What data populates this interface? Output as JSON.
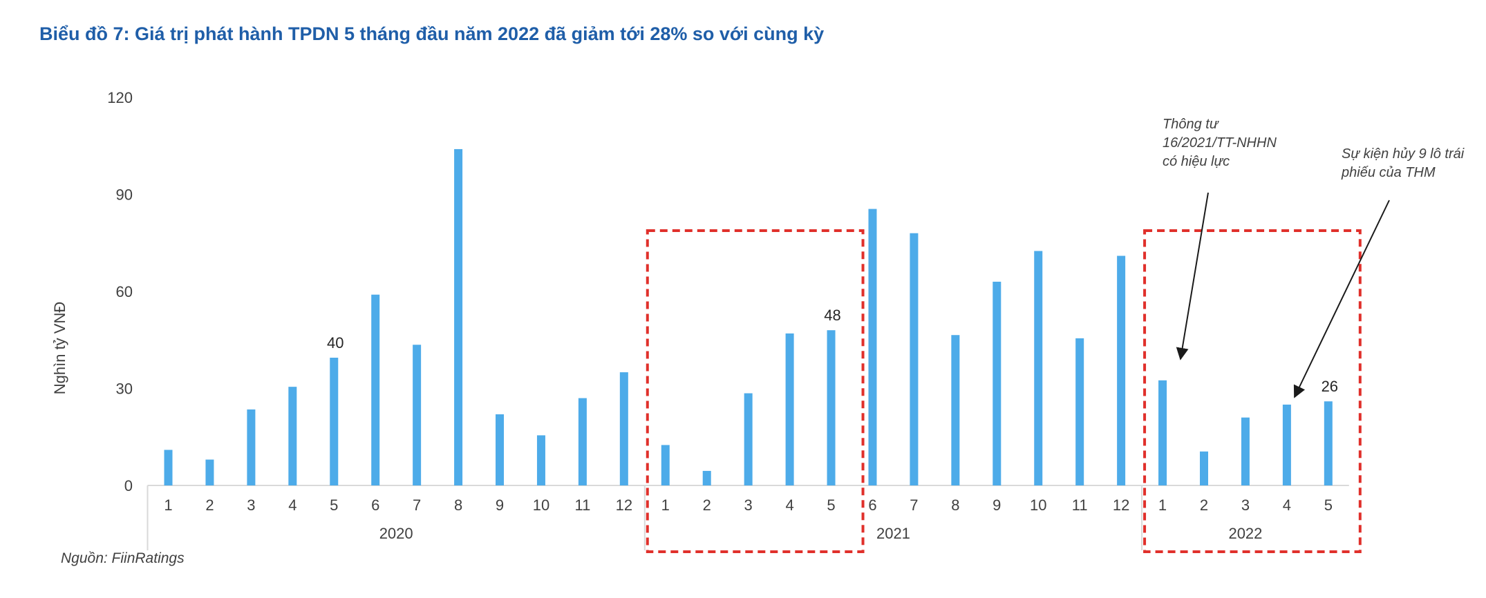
{
  "title": "Biểu đồ 7: Giá trị phát hành TPDN 5 tháng đầu năm 2022 đã giảm tới 28% so với cùng kỳ",
  "source": "Nguồn: FiinRatings",
  "colors": {
    "bar": "#4dabe9",
    "highlight_box": "#e0302b",
    "title": "#1f5ea8"
  },
  "chart_data": {
    "type": "bar",
    "title": "Biểu đồ 7: Giá trị phát hành TPDN 5 tháng đầu năm 2022 đã giảm tới 28% so với cùng kỳ",
    "ylabel": "Nghìn tỷ VNĐ",
    "xlabel": "",
    "ylim": [
      0,
      120
    ],
    "yticks": [
      "0",
      "30",
      "60",
      "90",
      "120"
    ],
    "grid": false,
    "groups": [
      {
        "label": "2020",
        "months": [
          "1",
          "2",
          "3",
          "4",
          "5",
          "6",
          "7",
          "8",
          "9",
          "10",
          "11",
          "12"
        ],
        "values": [
          11,
          8,
          23.5,
          30.5,
          39.5,
          59,
          43.5,
          104,
          22,
          15.5,
          27,
          35
        ]
      },
      {
        "label": "2021",
        "months": [
          "1",
          "2",
          "3",
          "4",
          "5",
          "6",
          "7",
          "8",
          "9",
          "10",
          "11",
          "12"
        ],
        "values": [
          12.5,
          4.5,
          28.5,
          47,
          48,
          85.5,
          78,
          46.5,
          63,
          72.5,
          45.5,
          71
        ]
      },
      {
        "label": "2022",
        "months": [
          "1",
          "2",
          "3",
          "4",
          "5"
        ],
        "values": [
          32.5,
          10.5,
          21,
          25,
          26
        ]
      }
    ],
    "data_labels": [
      {
        "group": 0,
        "index": 4,
        "text": "40"
      },
      {
        "group": 1,
        "index": 4,
        "text": "48"
      },
      {
        "group": 2,
        "index": 4,
        "text": "26"
      }
    ],
    "highlight_boxes": [
      {
        "group": 1,
        "from_index": 0,
        "to_index": 4
      },
      {
        "group": 2,
        "from_index": 0,
        "to_index": 4
      }
    ],
    "annotations": [
      {
        "lines": [
          "Thông tư",
          "16/2021/TT-NHHN",
          "có hiệu lực"
        ],
        "points_to": {
          "group": 2,
          "index": 0
        }
      },
      {
        "lines": [
          "Sự kiện hủy 9 lô trái",
          "phiếu của THM"
        ],
        "points_to": {
          "group": 2,
          "index": 3
        }
      }
    ]
  }
}
